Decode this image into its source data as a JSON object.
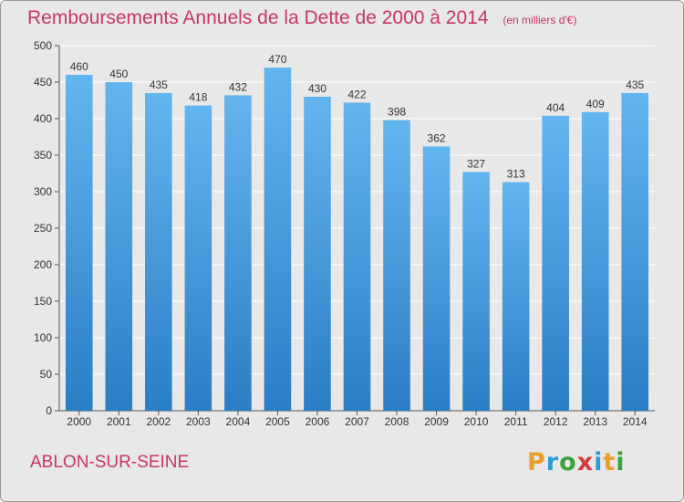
{
  "header": {
    "title": "Remboursements Annuels de la Dette de 2000 à 2014",
    "subtitle": "(en milliers d'€)"
  },
  "footer": {
    "place": "ABLON-SUR-SEINE",
    "logo_letters": [
      "P",
      "r",
      "o",
      "x",
      "i",
      "t",
      "i"
    ],
    "logo_colors": [
      "#e8a02a",
      "#2e9ad7",
      "#3aa53a",
      "#d23c3c",
      "#2e9ad7",
      "#e8a02a",
      "#3aa53a"
    ]
  },
  "colors": {
    "bar": "#4aa0e0",
    "bar_light": "#63b5ef",
    "bar_dark": "#2a7ec5",
    "title": "#c8346c",
    "grid": "#ffffff"
  },
  "chart_data": {
    "type": "bar",
    "title": "Remboursements Annuels de la Dette de 2000 à 2014",
    "subtitle": "(en milliers d'€)",
    "categories": [
      "2000",
      "2001",
      "2002",
      "2003",
      "2004",
      "2005",
      "2006",
      "2007",
      "2008",
      "2009",
      "2010",
      "2011",
      "2012",
      "2013",
      "2014"
    ],
    "values": [
      460,
      450,
      435,
      418,
      432,
      470,
      430,
      422,
      398,
      362,
      327,
      313,
      404,
      409,
      435
    ],
    "ylim": [
      0,
      500
    ],
    "yticks": [
      0,
      50,
      100,
      150,
      200,
      250,
      300,
      350,
      400,
      450,
      500
    ],
    "grid": true,
    "data_labels": true
  }
}
